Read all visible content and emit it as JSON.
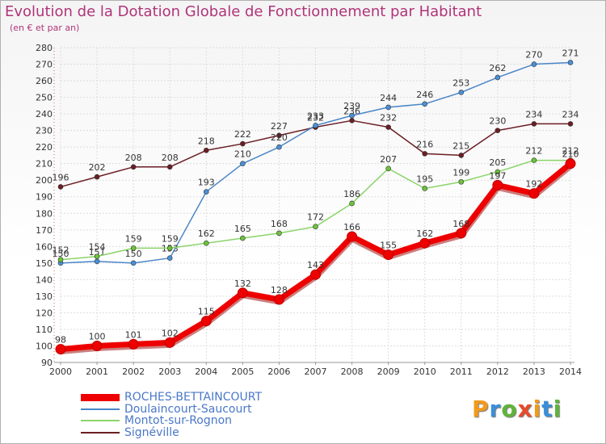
{
  "header": {
    "title": "Evolution de la Dotation Globale de Fonctionnement par Habitant",
    "subtitle": "(en € et par an)"
  },
  "brand": {
    "letters": [
      "P",
      "r",
      "o",
      "x",
      "i",
      "t",
      "i"
    ],
    "colors": [
      "#f29a1a",
      "#3a8fd8",
      "#5fb43a",
      "#e84a2a",
      "#f29a1a",
      "#3a8fd8",
      "#5fb43a"
    ]
  },
  "chart_data": {
    "type": "line",
    "title": "Evolution de la Dotation Globale de Fonctionnement par Habitant",
    "subtitle": "(en € et par an)",
    "xlabel": "",
    "ylabel": "",
    "ylim": [
      90,
      280
    ],
    "yticks": [
      90,
      100,
      110,
      120,
      130,
      140,
      150,
      160,
      170,
      180,
      190,
      200,
      210,
      220,
      230,
      240,
      250,
      260,
      270,
      280
    ],
    "categories": [
      "2000",
      "2001",
      "2002",
      "2003",
      "2004",
      "2005",
      "2006",
      "2007",
      "2008",
      "2009",
      "2010",
      "2011",
      "2012",
      "2013",
      "2014"
    ],
    "legend_position": "bottom-left",
    "series": [
      {
        "name": "Signéville",
        "color": "#6b1e24",
        "marker": "#6b1e24",
        "values": [
          196,
          202,
          208,
          208,
          218,
          222,
          227,
          232,
          236,
          232,
          216,
          215,
          230,
          234,
          234
        ]
      },
      {
        "name": "Doulaincourt-Saucourt",
        "color": "#4a86c8",
        "marker": "#4a90d9",
        "values": [
          150,
          151,
          150,
          153,
          193,
          210,
          220,
          233,
          239,
          244,
          246,
          253,
          262,
          270,
          271
        ]
      },
      {
        "name": "Montot-sur-Rognon",
        "color": "#8cd46a",
        "marker": "#6cc43a",
        "values": [
          152,
          154,
          159,
          159,
          162,
          165,
          168,
          172,
          186,
          207,
          195,
          199,
          205,
          212,
          212
        ]
      },
      {
        "name": "ROCHES-BETTAINCOURT",
        "color": "#ee0000",
        "marker": "#ee0000",
        "values": [
          98,
          100,
          101,
          102,
          115,
          132,
          128,
          143,
          166,
          155,
          162,
          168,
          197,
          192,
          210
        ]
      }
    ],
    "legend_order": [
      "ROCHES-BETTAINCOURT",
      "Doulaincourt-Saucourt",
      "Montot-sur-Rognon",
      "Signéville"
    ]
  }
}
